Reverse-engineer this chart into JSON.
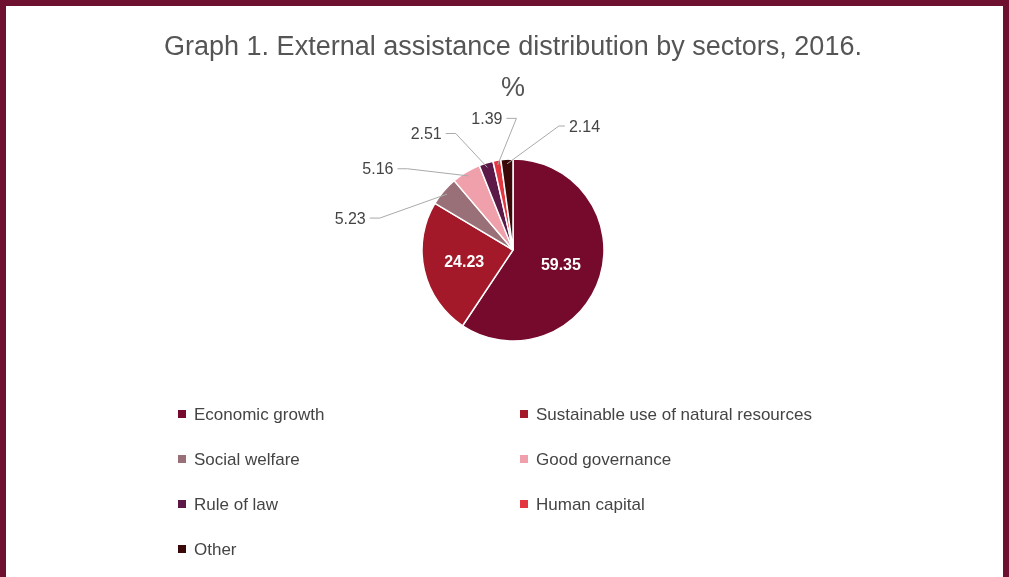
{
  "chart_data": {
    "type": "pie",
    "title": "Graph 1. External assistance distribution by sectors, 2016.",
    "subtitle": "%",
    "categories": [
      "Economic growth",
      "Sustainable use of natural resources",
      "Social welfare",
      "Good governance",
      "Rule of law",
      "Human capital",
      "Other"
    ],
    "values": [
      59.35,
      24.23,
      5.23,
      5.16,
      2.51,
      1.39,
      2.14
    ],
    "colors": [
      "#760a2c",
      "#a3192a",
      "#9a7078",
      "#f0a0aa",
      "#5c1846",
      "#e23640",
      "#3a0808"
    ],
    "data_labels": true,
    "legend": "bottom"
  }
}
